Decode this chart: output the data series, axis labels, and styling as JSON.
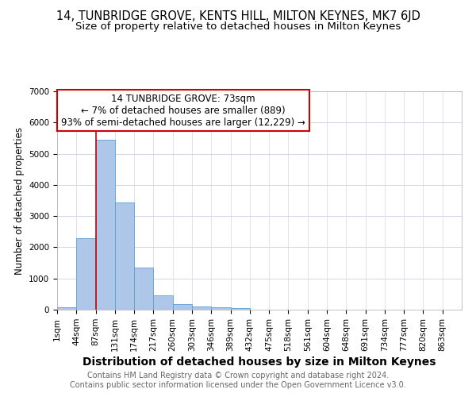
{
  "title": "14, TUNBRIDGE GROVE, KENTS HILL, MILTON KEYNES, MK7 6JD",
  "subtitle": "Size of property relative to detached houses in Milton Keynes",
  "xlabel": "Distribution of detached houses by size in Milton Keynes",
  "ylabel": "Number of detached properties",
  "bin_labels": [
    "1sqm",
    "44sqm",
    "87sqm",
    "131sqm",
    "174sqm",
    "217sqm",
    "260sqm",
    "303sqm",
    "346sqm",
    "389sqm",
    "432sqm",
    "475sqm",
    "518sqm",
    "561sqm",
    "604sqm",
    "648sqm",
    "691sqm",
    "734sqm",
    "777sqm",
    "820sqm",
    "863sqm"
  ],
  "bar_values": [
    80,
    2280,
    5450,
    3430,
    1340,
    460,
    185,
    100,
    75,
    45,
    0,
    0,
    0,
    0,
    0,
    0,
    0,
    0,
    0,
    0,
    0
  ],
  "bar_color": "#aec6e8",
  "bar_edge_color": "#5a9fd4",
  "annotation_box_text": "14 TUNBRIDGE GROVE: 73sqm\n← 7% of detached houses are smaller (889)\n93% of semi-detached houses are larger (12,229) →",
  "annotation_box_color": "#ffffff",
  "annotation_box_edge_color": "#cc0000",
  "vline_x": 2.0,
  "vline_color": "#cc0000",
  "grid_color": "#d0d8e8",
  "background_color": "#ffffff",
  "footer_text": "Contains HM Land Registry data © Crown copyright and database right 2024.\nContains public sector information licensed under the Open Government Licence v3.0.",
  "ylim": [
    0,
    7000
  ],
  "title_fontsize": 10.5,
  "subtitle_fontsize": 9.5,
  "xlabel_fontsize": 10,
  "ylabel_fontsize": 8.5,
  "tick_fontsize": 7.5,
  "footer_fontsize": 7.0,
  "annot_fontsize": 8.5
}
